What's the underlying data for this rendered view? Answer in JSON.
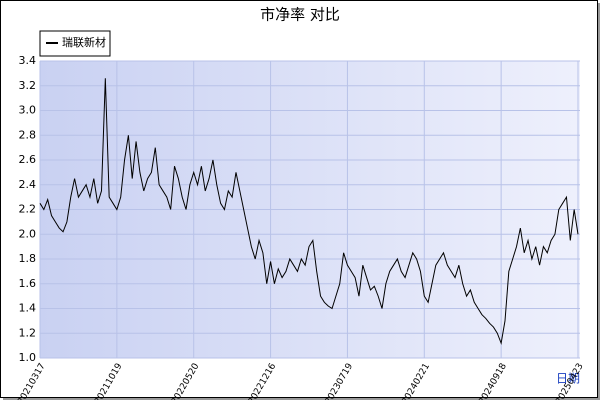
{
  "chart_data": {
    "type": "line",
    "title": "市净率  对比",
    "x_label": "日期",
    "categories": [
      "20210317",
      null,
      null,
      null,
      null,
      null,
      null,
      null,
      null,
      null,
      null,
      null,
      null,
      null,
      null,
      null,
      null,
      null,
      null,
      null,
      "20211019",
      null,
      null,
      null,
      null,
      null,
      null,
      null,
      null,
      null,
      null,
      null,
      null,
      null,
      null,
      null,
      null,
      null,
      null,
      null,
      "20220520",
      null,
      null,
      null,
      null,
      null,
      null,
      null,
      null,
      null,
      null,
      null,
      null,
      null,
      null,
      null,
      null,
      null,
      null,
      null,
      "20221216",
      null,
      null,
      null,
      null,
      null,
      null,
      null,
      null,
      null,
      null,
      null,
      null,
      null,
      null,
      null,
      null,
      null,
      null,
      null,
      "20230719",
      null,
      null,
      null,
      null,
      null,
      null,
      null,
      null,
      null,
      null,
      null,
      null,
      null,
      null,
      null,
      null,
      null,
      null,
      null,
      "20240221",
      null,
      null,
      null,
      null,
      null,
      null,
      null,
      null,
      null,
      null,
      null,
      null,
      null,
      null,
      null,
      null,
      null,
      null,
      null,
      "20240918",
      null,
      null,
      null,
      null,
      null,
      null,
      null,
      null,
      null,
      null,
      null,
      null,
      null,
      null,
      null,
      null,
      null,
      null,
      null,
      "20250423"
    ],
    "series": [
      {
        "name": "瑞联新材",
        "color": "#000000",
        "values": [
          2.25,
          2.2,
          2.28,
          2.15,
          2.1,
          2.05,
          2.02,
          2.1,
          2.3,
          2.45,
          2.3,
          2.35,
          2.4,
          2.3,
          2.45,
          2.25,
          2.35,
          3.26,
          2.3,
          2.25,
          2.2,
          2.3,
          2.6,
          2.8,
          2.45,
          2.75,
          2.5,
          2.35,
          2.45,
          2.5,
          2.7,
          2.4,
          2.35,
          2.3,
          2.2,
          2.55,
          2.45,
          2.3,
          2.2,
          2.4,
          2.5,
          2.4,
          2.55,
          2.35,
          2.45,
          2.6,
          2.4,
          2.25,
          2.2,
          2.35,
          2.3,
          2.5,
          2.35,
          2.2,
          2.05,
          1.9,
          1.8,
          1.95,
          1.85,
          1.6,
          1.78,
          1.6,
          1.72,
          1.65,
          1.7,
          1.8,
          1.75,
          1.7,
          1.8,
          1.75,
          1.9,
          1.95,
          1.7,
          1.5,
          1.45,
          1.42,
          1.4,
          1.5,
          1.6,
          1.85,
          1.75,
          1.7,
          1.65,
          1.5,
          1.75,
          1.65,
          1.55,
          1.58,
          1.5,
          1.4,
          1.6,
          1.7,
          1.75,
          1.8,
          1.7,
          1.65,
          1.75,
          1.85,
          1.8,
          1.7,
          1.5,
          1.45,
          1.6,
          1.75,
          1.8,
          1.85,
          1.75,
          1.7,
          1.65,
          1.75,
          1.6,
          1.5,
          1.55,
          1.45,
          1.4,
          1.35,
          1.32,
          1.28,
          1.25,
          1.2,
          1.12,
          1.3,
          1.7,
          1.8,
          1.9,
          2.05,
          1.85,
          1.95,
          1.8,
          1.9,
          1.75,
          1.9,
          1.85,
          1.95,
          2.0,
          2.2,
          2.25,
          2.3,
          1.95,
          2.2,
          2.0
        ]
      }
    ],
    "ylim": [
      1,
      3.4
    ],
    "yticks": [
      {
        "value": 1,
        "label": "1.0"
      },
      1.2,
      1.4,
      1.6,
      1.8,
      {
        "value": 2,
        "label": "2.0"
      },
      2.2,
      2.4,
      2.6,
      2.8,
      {
        "value": 3,
        "label": "3.0"
      },
      3.2,
      3.4
    ],
    "grid": true
  }
}
